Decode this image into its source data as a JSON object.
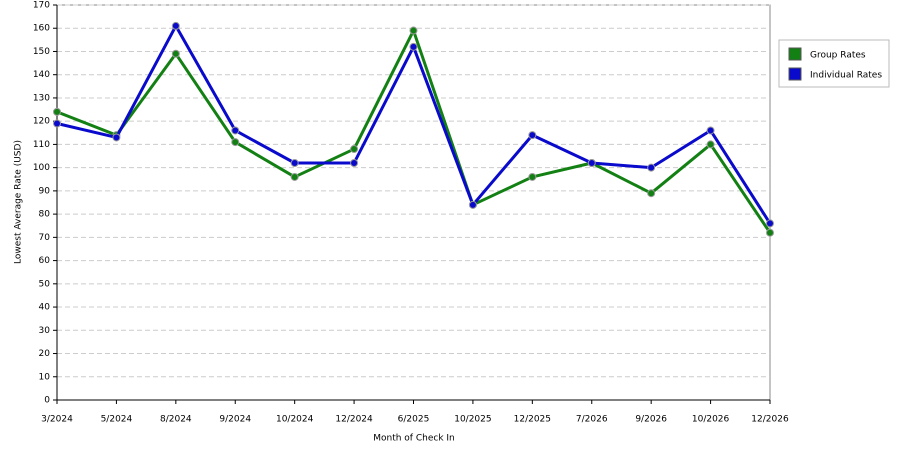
{
  "chart_data": {
    "type": "line",
    "x_label": "Month of Check In",
    "y_label": "Lowest Average Rate (USD)",
    "categories": [
      "3/2024",
      "5/2024",
      "8/2024",
      "9/2024",
      "10/2024",
      "12/2024",
      "6/2025",
      "10/2025",
      "12/2025",
      "7/2026",
      "9/2026",
      "10/2026",
      "12/2026"
    ],
    "series": [
      {
        "name": "Group Rates",
        "color": "#138013",
        "values": [
          124,
          114,
          149,
          111,
          96,
          108,
          159,
          84,
          96,
          102,
          89,
          110,
          72
        ]
      },
      {
        "name": "Individual Rates",
        "color": "#0a0acc",
        "values": [
          119,
          113,
          161,
          116,
          102,
          102,
          152,
          84,
          114,
          102,
          100,
          116,
          76
        ]
      }
    ],
    "ylim": [
      0,
      170
    ],
    "yticks": [
      0,
      10,
      20,
      30,
      40,
      50,
      60,
      70,
      80,
      90,
      100,
      110,
      120,
      130,
      140,
      150,
      160,
      170
    ],
    "grid": true,
    "legend": "right"
  }
}
